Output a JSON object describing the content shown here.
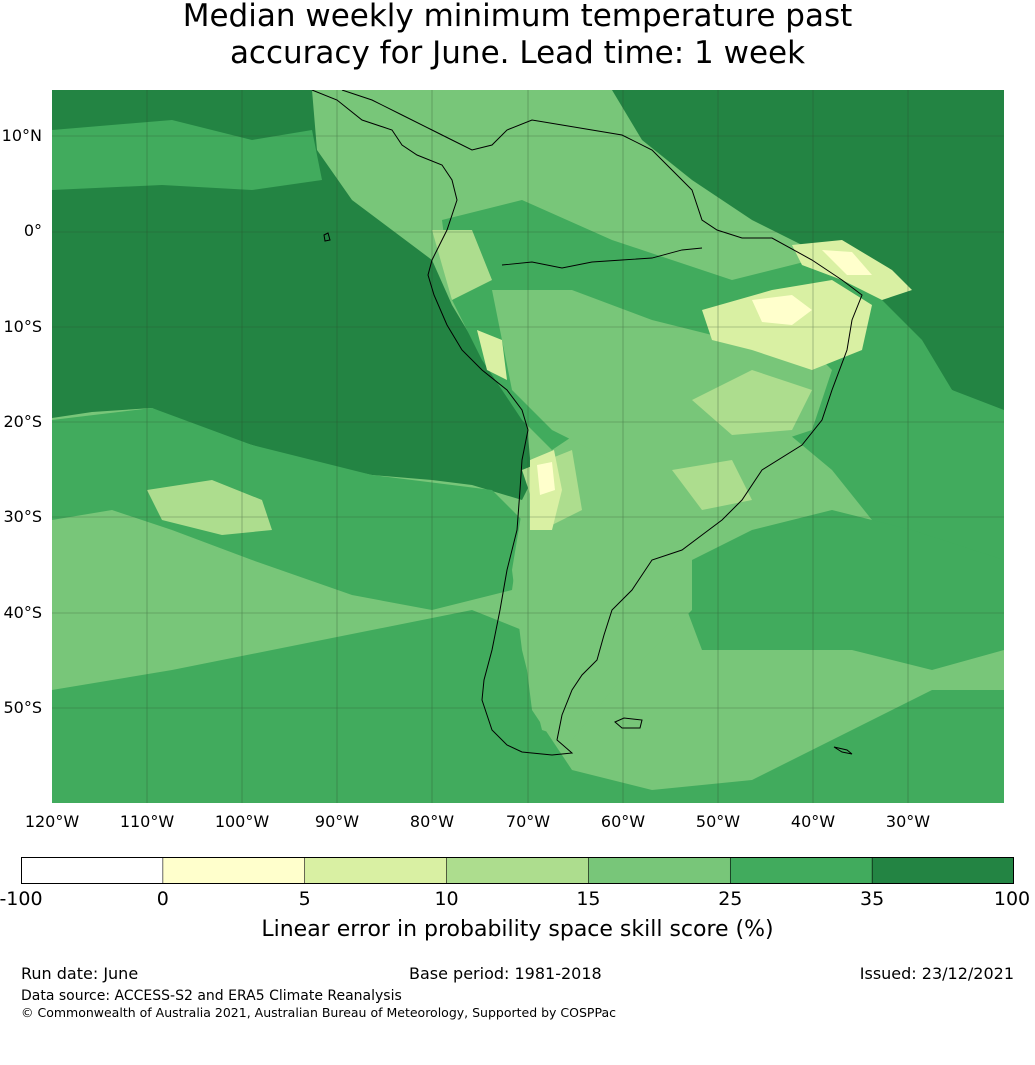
{
  "title": {
    "line1": "Median weekly minimum temperature past",
    "line2": "accuracy for June. Lead time: 1 week"
  },
  "map": {
    "lat_labels": [
      "10°N",
      "0°",
      "10°S",
      "20°S",
      "30°S",
      "40°S",
      "50°S"
    ],
    "lon_labels": [
      "120°W",
      "110°W",
      "100°W",
      "90°W",
      "80°W",
      "70°W",
      "60°W",
      "50°W",
      "40°W",
      "30°W"
    ],
    "colors": {
      "bin_-100_0": "#ffffff",
      "bin_0_5": "#ffffcc",
      "bin_5_10": "#d9f0a3",
      "bin_10_15": "#addd8e",
      "bin_15_25": "#78c679",
      "bin_25_35": "#41ab5d",
      "bin_35_100": "#238443",
      "coastline": "#000000"
    }
  },
  "colorbar": {
    "ticks": [
      "-100",
      "0",
      "5",
      "10",
      "15",
      "25",
      "35",
      "100"
    ],
    "colors": [
      "#ffffff",
      "#ffffcc",
      "#d9f0a3",
      "#addd8e",
      "#78c679",
      "#41ab5d",
      "#238443"
    ],
    "label": "Linear error in probability space skill score (%)"
  },
  "footer": {
    "run_date": "Run date: June",
    "base_period": "Base period: 1981-2018",
    "issued": "Issued: 23/12/2021",
    "data_source": "Data source: ACCESS-S2 and ERA5 Climate Reanalysis",
    "copyright": "© Commonwealth of Australia 2021, Australian Bureau of Meteorology, Supported by COSPPac"
  }
}
